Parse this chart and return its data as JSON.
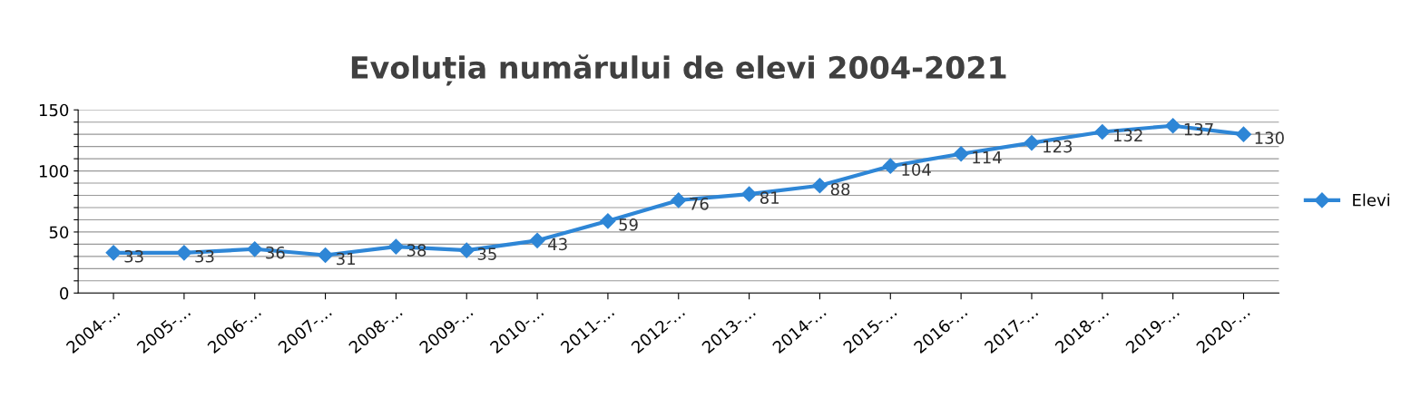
{
  "chart_data": {
    "type": "line",
    "title": "Evoluția numărului de elevi 2004-2021",
    "categories": [
      "2004-…",
      "2005-…",
      "2006-…",
      "2007-…",
      "2008-…",
      "2009-…",
      "2010-…",
      "2011-…",
      "2012-…",
      "2013-…",
      "2014-…",
      "2015-…",
      "2016-…",
      "2017-…",
      "2018-…",
      "2019-…",
      "2020-…"
    ],
    "series": [
      {
        "name": "Elevi",
        "color": "#2e86d6",
        "values": [
          33,
          33,
          36,
          31,
          38,
          35,
          43,
          59,
          76,
          81,
          88,
          104,
          114,
          123,
          132,
          137,
          130
        ]
      }
    ],
    "ylim": [
      0,
      150
    ],
    "yticks": [
      0,
      {
        "value": 10,
        "label": null
      },
      {
        "value": 20,
        "label": null
      },
      {
        "value": 30,
        "label": null
      },
      {
        "value": 40,
        "label": null
      },
      50,
      {
        "value": 60,
        "label": null
      },
      {
        "value": 70,
        "label": null
      },
      {
        "value": 80,
        "label": null
      },
      {
        "value": 90,
        "label": null
      },
      100,
      {
        "value": 110,
        "label": null
      },
      {
        "value": 120,
        "label": null
      },
      {
        "value": 130,
        "label": null
      },
      {
        "value": 140,
        "label": null
      },
      150
    ],
    "grid": "y",
    "legend": "right",
    "marker": "diamond",
    "line_style": "solid",
    "data_labels": true
  }
}
